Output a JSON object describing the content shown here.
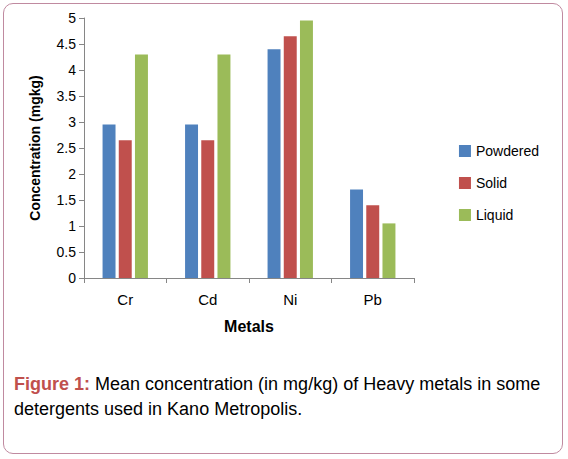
{
  "chart_data": {
    "type": "bar",
    "title": "Figure 1: Mean concentration (in mg/kg) of Heavy metals in some detergents used in Kano Metropolis.",
    "x_label": "Metals",
    "y_label": "Concentration (mgkg)",
    "categories": [
      "Cr",
      "Cd",
      "Ni",
      "Pb"
    ],
    "series": [
      {
        "name": "Powdered",
        "color": "#4f81bd",
        "values": [
          2.95,
          2.95,
          4.4,
          1.7
        ]
      },
      {
        "name": "Solid",
        "color": "#c0504d",
        "values": [
          2.65,
          2.65,
          4.65,
          1.4
        ]
      },
      {
        "name": "Liquid",
        "color": "#9bbb59",
        "values": [
          4.3,
          4.3,
          4.95,
          1.05
        ]
      }
    ],
    "ylim": [
      0,
      5
    ],
    "yticks": [
      0,
      0.5,
      1,
      1.5,
      2,
      2.5,
      3,
      3.5,
      4,
      4.5,
      5
    ],
    "grid": false,
    "legend": "right"
  }
}
